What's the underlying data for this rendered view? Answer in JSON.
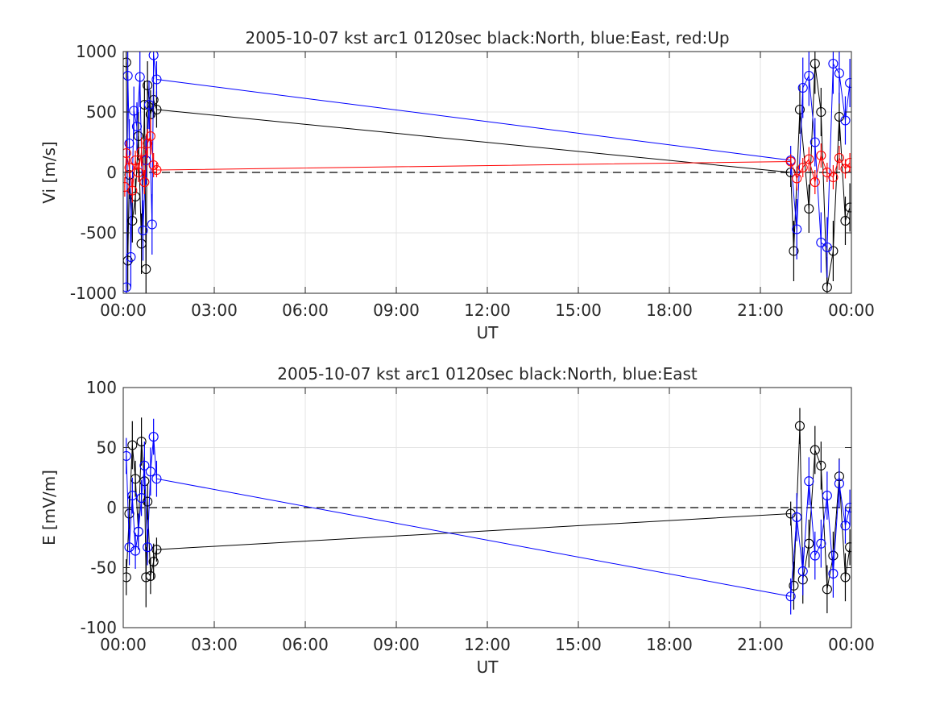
{
  "chart_data": [
    {
      "type": "scatter",
      "title": "2005-10-07 kst arc1 0120sec black:North, blue:East, red:Up",
      "xlabel": "UT",
      "ylabel": "Vi [m/s]",
      "xlim_hours": [
        0,
        24
      ],
      "ylim": [
        -1000,
        1000
      ],
      "xtick_labels": [
        "00:00",
        "03:00",
        "06:00",
        "09:00",
        "12:00",
        "15:00",
        "18:00",
        "21:00",
        "00:00"
      ],
      "ytick_labels": [
        "-1000",
        "-500",
        "0",
        "500",
        "1000"
      ],
      "ytick_values": [
        -1000,
        -500,
        0,
        500,
        1000
      ],
      "grid": true,
      "zero_line": "dashed",
      "series": [
        {
          "name": "North",
          "color": "#000000",
          "x_hours": [
            0.1,
            0.15,
            0.2,
            0.3,
            0.4,
            0.5,
            0.6,
            0.7,
            0.75,
            0.8,
            0.9,
            1.0,
            1.1,
            22.0,
            22.1,
            22.3,
            22.6,
            22.8,
            23.0,
            23.2,
            23.4,
            23.6,
            23.8,
            23.95
          ],
          "values": [
            910,
            -730,
            -20,
            -400,
            -200,
            300,
            -590,
            560,
            -800,
            720,
            480,
            600,
            520,
            0,
            -650,
            520,
            -300,
            900,
            500,
            -950,
            -650,
            460,
            -400,
            -290
          ],
          "errors": [
            150,
            250,
            200,
            180,
            150,
            200,
            250,
            200,
            250,
            200,
            200,
            150,
            150,
            120,
            250,
            200,
            200,
            250,
            200,
            250,
            250,
            200,
            200,
            200
          ]
        },
        {
          "name": "East",
          "color": "#0000ff",
          "x_hours": [
            0.1,
            0.15,
            0.2,
            0.25,
            0.35,
            0.45,
            0.55,
            0.65,
            0.75,
            0.85,
            0.95,
            1.0,
            1.1,
            22.0,
            22.2,
            22.4,
            22.6,
            22.8,
            23.0,
            23.2,
            23.4,
            23.6,
            23.8,
            23.95
          ],
          "values": [
            -950,
            800,
            240,
            -700,
            510,
            380,
            790,
            -480,
            100,
            560,
            -430,
            970,
            770,
            100,
            -470,
            700,
            800,
            250,
            -580,
            -620,
            900,
            820,
            430,
            740
          ],
          "errors": [
            200,
            250,
            200,
            250,
            200,
            200,
            250,
            250,
            200,
            200,
            250,
            200,
            150,
            120,
            250,
            250,
            250,
            200,
            250,
            250,
            250,
            250,
            200,
            200
          ]
        },
        {
          "name": "Up",
          "color": "#ff0000",
          "x_hours": [
            0.05,
            0.1,
            0.2,
            0.3,
            0.4,
            0.5,
            0.6,
            0.7,
            0.8,
            0.9,
            1.0,
            1.1,
            22.0,
            22.2,
            22.4,
            22.6,
            22.8,
            23.0,
            23.2,
            23.4,
            23.6,
            23.8,
            23.95
          ],
          "values": [
            -120,
            160,
            40,
            -150,
            100,
            0,
            170,
            -80,
            240,
            300,
            60,
            20,
            90,
            -50,
            40,
            110,
            -80,
            140,
            0,
            -40,
            120,
            30,
            80
          ],
          "errors": [
            80,
            100,
            80,
            100,
            80,
            80,
            120,
            100,
            120,
            150,
            100,
            60,
            60,
            100,
            80,
            100,
            100,
            100,
            80,
            100,
            100,
            80,
            80
          ]
        }
      ]
    },
    {
      "type": "scatter",
      "title": "2005-10-07 kst arc1 0120sec black:North, blue:East",
      "xlabel": "UT",
      "ylabel": "E [mV/m]",
      "xlim_hours": [
        0,
        24
      ],
      "ylim": [
        -100,
        100
      ],
      "xtick_labels": [
        "00:00",
        "03:00",
        "06:00",
        "09:00",
        "12:00",
        "15:00",
        "18:00",
        "21:00",
        "00:00"
      ],
      "ytick_labels": [
        "-100",
        "-50",
        "0",
        "50",
        "100"
      ],
      "ytick_values": [
        -100,
        -50,
        0,
        50,
        100
      ],
      "grid": true,
      "zero_line": "dashed",
      "series": [
        {
          "name": "North",
          "color": "#000000",
          "x_hours": [
            0.1,
            0.2,
            0.3,
            0.4,
            0.5,
            0.6,
            0.7,
            0.75,
            0.8,
            0.9,
            1.0,
            1.1,
            22.0,
            22.1,
            22.3,
            22.4,
            22.6,
            22.8,
            23.0,
            23.2,
            23.4,
            23.6,
            23.8,
            23.95
          ],
          "values": [
            -58,
            -5,
            52,
            24,
            -20,
            55,
            22,
            -58,
            5,
            -57,
            -45,
            -35,
            -5,
            -65,
            68,
            -60,
            -30,
            48,
            35,
            -68,
            -40,
            26,
            -58,
            -33
          ],
          "errors": [
            15,
            15,
            20,
            15,
            15,
            20,
            20,
            25,
            15,
            15,
            15,
            10,
            10,
            20,
            15,
            20,
            20,
            20,
            20,
            20,
            20,
            15,
            20,
            15
          ]
        },
        {
          "name": "East",
          "color": "#0000ff",
          "x_hours": [
            0.1,
            0.2,
            0.3,
            0.4,
            0.5,
            0.6,
            0.7,
            0.8,
            0.9,
            1.0,
            1.1,
            22.0,
            22.2,
            22.4,
            22.6,
            22.8,
            23.0,
            23.2,
            23.4,
            23.6,
            23.8,
            23.95
          ],
          "values": [
            43,
            -33,
            10,
            -36,
            -20,
            8,
            35,
            -33,
            30,
            59,
            24,
            -74,
            -8,
            -53,
            22,
            -40,
            -30,
            10,
            -55,
            20,
            -15,
            0
          ],
          "errors": [
            15,
            15,
            15,
            15,
            15,
            15,
            20,
            15,
            20,
            15,
            15,
            15,
            20,
            20,
            20,
            20,
            20,
            20,
            20,
            20,
            15,
            15
          ]
        }
      ]
    }
  ]
}
